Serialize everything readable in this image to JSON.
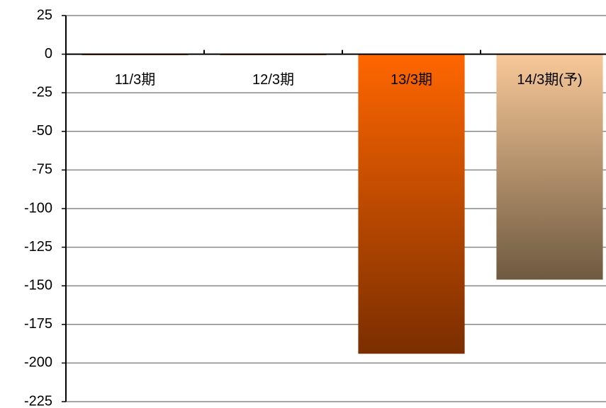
{
  "chart_data": {
    "type": "bar",
    "categories": [
      "11/3期",
      "12/3期",
      "13/3期",
      "14/3期(予)"
    ],
    "values": [
      0,
      0,
      -194,
      -146
    ],
    "colors": [
      "#ff6600",
      "#ff6600",
      "#ff6600",
      "#f8c898"
    ],
    "gradient_end_colors": [
      "#b35a00",
      "#b35a00",
      "#7a2e00",
      "#6e5a40"
    ],
    "ylim": [
      -225,
      25
    ],
    "yticks": [
      25,
      0,
      -25,
      -50,
      -75,
      -100,
      -125,
      -150,
      -175,
      -200,
      -225
    ],
    "grid": true
  }
}
